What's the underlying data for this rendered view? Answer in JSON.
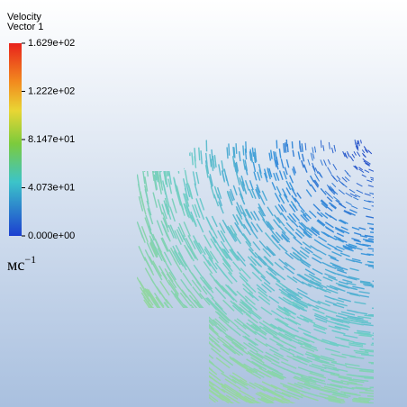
{
  "legend": {
    "title": "Velocity",
    "subtitle": "Vector 1",
    "range": [
      0,
      162.9
    ],
    "ticks": [
      {
        "value": 162.9,
        "label": "1.629e+02"
      },
      {
        "value": 122.2,
        "label": "1.222e+02"
      },
      {
        "value": 81.47,
        "label": "8.147e+01"
      },
      {
        "value": 40.73,
        "label": "4.073e+01"
      },
      {
        "value": 0,
        "label": "0.000e+00"
      }
    ],
    "unit": "мс",
    "unit_exponent": "−1"
  }
}
